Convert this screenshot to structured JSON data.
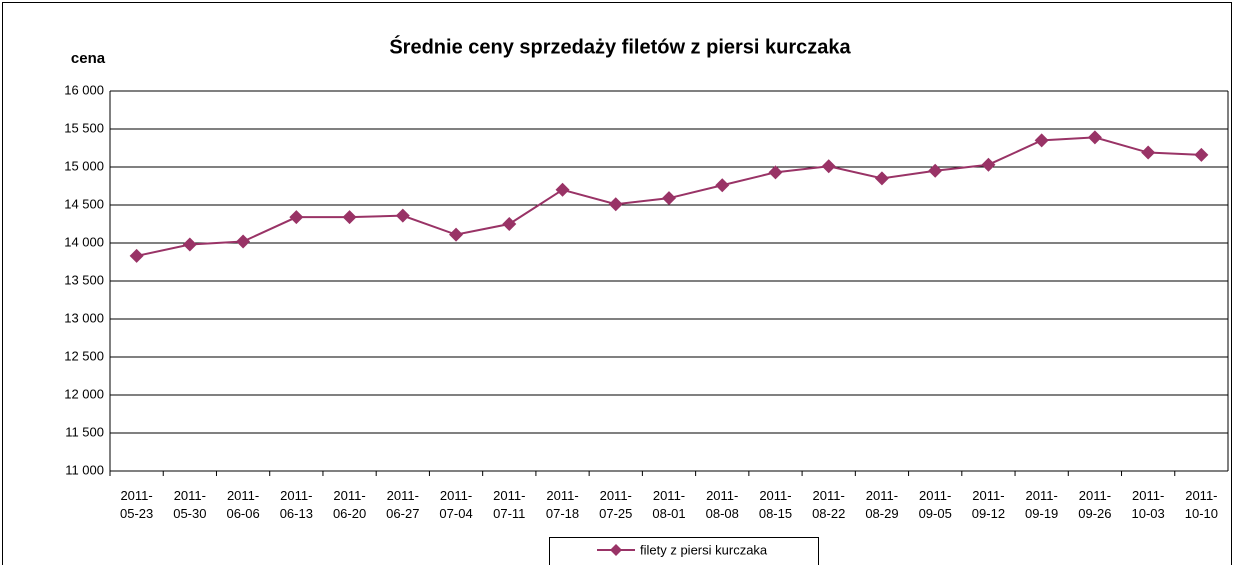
{
  "chart_data": {
    "type": "line",
    "title": "Średnie ceny sprzedaży filetów z piersi kurczaka",
    "y_label": "cena",
    "categories": [
      "2011-05-23",
      "2011-05-30",
      "2011-06-06",
      "2011-06-13",
      "2011-06-20",
      "2011-06-27",
      "2011-07-04",
      "2011-07-11",
      "2011-07-18",
      "2011-07-25",
      "2011-08-01",
      "2011-08-08",
      "2011-08-15",
      "2011-08-22",
      "2011-08-29",
      "2011-09-05",
      "2011-09-12",
      "2011-09-19",
      "2011-09-26",
      "2011-10-03",
      "2011-10-10"
    ],
    "series": [
      {
        "name": "filety z piersi kurczaka",
        "color": "#993366",
        "values": [
          13830,
          13980,
          14020,
          14340,
          14340,
          14360,
          14110,
          14250,
          14700,
          14510,
          14590,
          14760,
          14930,
          15010,
          14850,
          14950,
          15030,
          15350,
          15390,
          15190,
          15160
        ]
      }
    ],
    "ylim": [
      11000,
      16000
    ],
    "yticks": [
      {
        "value": 11000,
        "label": "11 000"
      },
      {
        "value": 11500,
        "label": "11 500"
      },
      {
        "value": 12000,
        "label": "12 000"
      },
      {
        "value": 12500,
        "label": "12 500"
      },
      {
        "value": 13000,
        "label": "13 000"
      },
      {
        "value": 13500,
        "label": "13 500"
      },
      {
        "value": 14000,
        "label": "14 000"
      },
      {
        "value": 14500,
        "label": "14 500"
      },
      {
        "value": 15000,
        "label": "15 000"
      },
      {
        "value": 15500,
        "label": "15 500"
      },
      {
        "value": 16000,
        "label": "16 000"
      }
    ],
    "grid": true,
    "legend": "bottom"
  }
}
